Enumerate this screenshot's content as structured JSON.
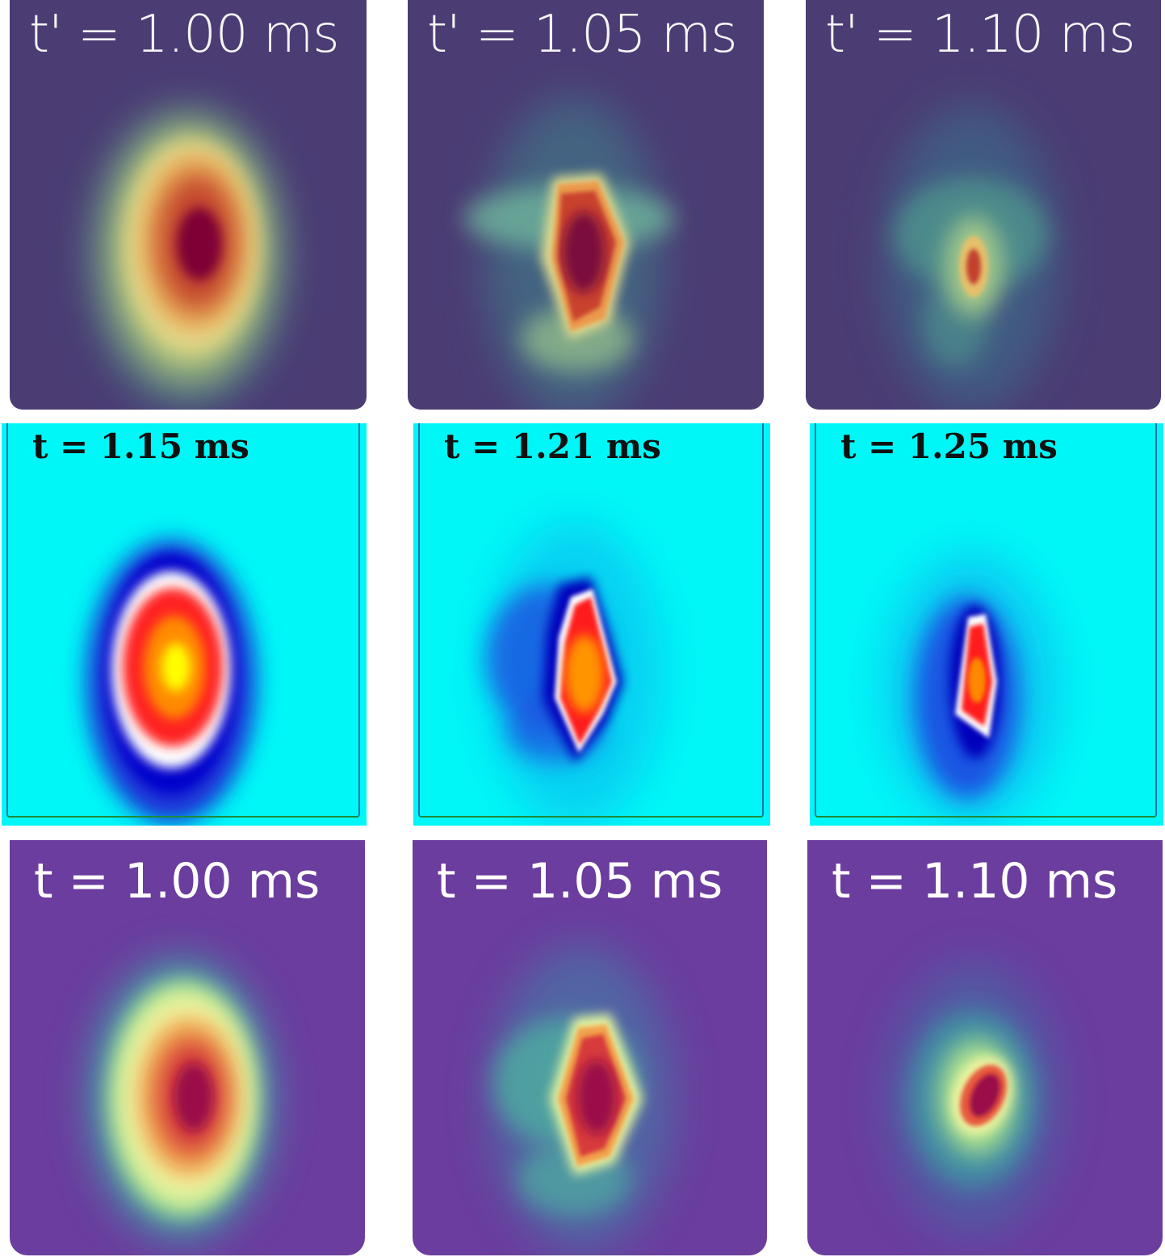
{
  "figure": {
    "rows": [
      {
        "colormap": "spectral",
        "panels": [
          {
            "label": "t' = 1.00 ms"
          },
          {
            "label": "t' = 1.05 ms"
          },
          {
            "label": "t' = 1.10 ms"
          }
        ]
      },
      {
        "colormap": "cyan-blue-red-yellow",
        "panels": [
          {
            "label": "t = 1.15 ms"
          },
          {
            "label": "t = 1.21 ms"
          },
          {
            "label": "t = 1.25 ms"
          }
        ]
      },
      {
        "colormap": "viridis-like",
        "panels": [
          {
            "label": "t = 1.00 ms"
          },
          {
            "label": "t = 1.05 ms"
          },
          {
            "label": "t = 1.10 ms"
          }
        ]
      }
    ]
  },
  "colors": {
    "row1_background": "#4b3c74",
    "row2_background": "#00f7f7",
    "row3_background": "#6a3d9e"
  }
}
